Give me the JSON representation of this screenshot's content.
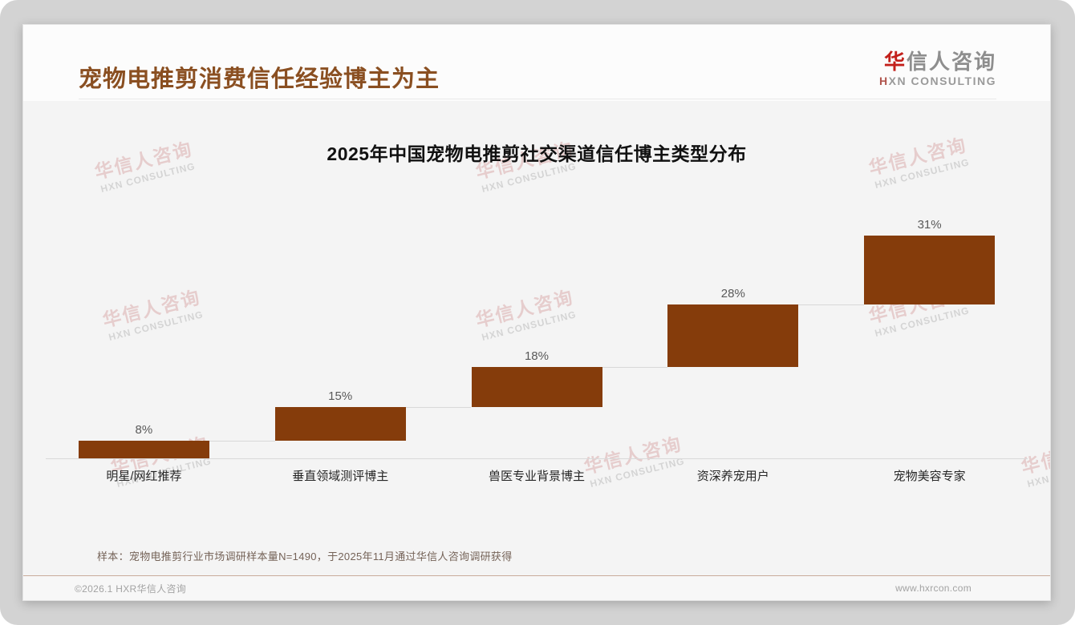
{
  "header": {
    "title": "宠物电推剪消费信任经验博主为主",
    "logo": {
      "cn_first": "华",
      "cn_rest": "信人咨询",
      "en_first": "H",
      "en_rest": "XN CONSULTING"
    }
  },
  "watermark": {
    "line1": "华信人咨询",
    "line2": "HXN CONSULTING"
  },
  "chart_data": {
    "type": "bar",
    "variant": "stepped-cumulative-waterfall",
    "title": "2025年中国宠物电推剪社交渠道信任博主类型分布",
    "categories": [
      "明星/网红推荐",
      "垂直领域测评博主",
      "兽医专业背景博主",
      "资深养宠用户",
      "宠物美容专家"
    ],
    "values": [
      8,
      15,
      18,
      28,
      31
    ],
    "value_labels": [
      "8%",
      "15%",
      "18%",
      "28%",
      "31%"
    ],
    "unit": "%",
    "ylim": [
      0,
      100
    ],
    "grid": false,
    "legend": false,
    "bar_color": "#853C0B",
    "value_label_color": "#595959",
    "category_label_color": "#262626",
    "baseline_color": "#d9d9d9"
  },
  "footnote": "样本：宠物电推剪行业市场调研样本量N=1490，于2025年11月通过华信人咨询调研获得",
  "footer": {
    "left": "©2026.1 HXR华信人咨询",
    "right": "www.hxrcon.com"
  }
}
